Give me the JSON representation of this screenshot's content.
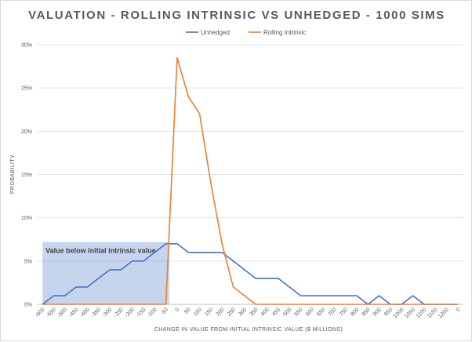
{
  "chart_data": {
    "type": "line",
    "title": "VALUATION - ROLLING INTRINSIC VS UNHEDGED - 1000 SIMS",
    "xlabel": "CHANGE IN VALUE FROM INITIAL INTRINSIC VALUE ($ MILLIONS)",
    "ylabel": "PROBABILITY",
    "ylim": [
      0,
      0.3
    ],
    "yticks": [
      "0%",
      "5%",
      "10%",
      "15%",
      "20%",
      "25%",
      "30%"
    ],
    "categories": [
      "-600",
      "-550",
      "-500",
      "-450",
      "-400",
      "-350",
      "-300",
      "-250",
      "-200",
      "-150",
      "-100",
      "-50",
      "0",
      "50",
      "100",
      "150",
      "200",
      "250",
      "300",
      "350",
      "400",
      "450",
      "500",
      "550",
      "600",
      "650",
      "700",
      "750",
      "800",
      "850",
      "900",
      "950",
      "1000",
      "1050",
      "1100",
      "1150",
      "1200",
      "0"
    ],
    "series": [
      {
        "name": "Unhedged",
        "color": "#4472c4",
        "values": [
          0,
          0.01,
          0.01,
          0.02,
          0.02,
          0.03,
          0.04,
          0.04,
          0.05,
          0.05,
          0.06,
          0.07,
          0.07,
          0.06,
          0.06,
          0.06,
          0.06,
          0.05,
          0.04,
          0.03,
          0.03,
          0.03,
          0.02,
          0.01,
          0.01,
          0.01,
          0.01,
          0.01,
          0.01,
          0,
          0.01,
          0,
          0,
          0.01,
          0,
          0,
          0,
          0
        ]
      },
      {
        "name": "Rolling Intrinsic",
        "color": "#ed7d31",
        "values": [
          0,
          0,
          0,
          0,
          0,
          0,
          0,
          0,
          0,
          0,
          0,
          0,
          0.285,
          0.24,
          0.22,
          0.14,
          0.07,
          0.02,
          0.01,
          0,
          0,
          0,
          0,
          0,
          0,
          0,
          0,
          0,
          0,
          0,
          0,
          0,
          0,
          0,
          0,
          0,
          0,
          0
        ]
      }
    ],
    "legend": "top",
    "grid": true,
    "shaded_region": {
      "label": "Value below initial intrinsic value",
      "x_from": "-600",
      "x_to": "-50",
      "y_to": 0.072,
      "color": "#4472c4"
    }
  }
}
